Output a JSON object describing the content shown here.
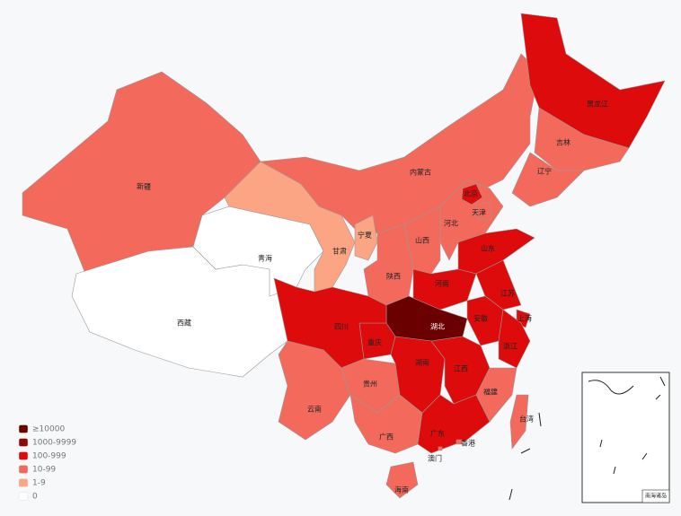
{
  "legend": [
    {
      "label": "≥10000",
      "color": "#6b0000"
    },
    {
      "label": "1000-9999",
      "color": "#8e0a0a"
    },
    {
      "label": "100-999",
      "color": "#dd0b0b"
    },
    {
      "label": "10-99",
      "color": "#f36a5d"
    },
    {
      "label": "1-9",
      "color": "#fba584"
    },
    {
      "label": "0",
      "color": "#ffffff"
    }
  ],
  "provinces": [
    {
      "name": "新疆",
      "level": 3
    },
    {
      "name": "西藏",
      "level": 5
    },
    {
      "name": "青海",
      "level": 5
    },
    {
      "name": "甘肃",
      "level": 4
    },
    {
      "name": "内蒙古",
      "level": 3
    },
    {
      "name": "黑龙江",
      "level": 2
    },
    {
      "name": "吉林",
      "level": 3
    },
    {
      "name": "辽宁",
      "level": 3
    },
    {
      "name": "河北",
      "level": 3
    },
    {
      "name": "北京",
      "level": 2
    },
    {
      "name": "天津",
      "level": 3
    },
    {
      "name": "山西",
      "level": 3
    },
    {
      "name": "宁夏",
      "level": 4
    },
    {
      "name": "陕西",
      "level": 3
    },
    {
      "name": "山东",
      "level": 2
    },
    {
      "name": "河南",
      "level": 2
    },
    {
      "name": "江苏",
      "level": 2
    },
    {
      "name": "安徽",
      "level": 2
    },
    {
      "name": "上海",
      "level": 2
    },
    {
      "name": "浙江",
      "level": 2
    },
    {
      "name": "湖北",
      "level": 0
    },
    {
      "name": "重庆",
      "level": 2
    },
    {
      "name": "四川",
      "level": 2
    },
    {
      "name": "云南",
      "level": 3
    },
    {
      "name": "贵州",
      "level": 3
    },
    {
      "name": "广西",
      "level": 3
    },
    {
      "name": "湖南",
      "level": 2
    },
    {
      "name": "江西",
      "level": 2
    },
    {
      "name": "福建",
      "level": 3
    },
    {
      "name": "广东",
      "level": 2
    },
    {
      "name": "海南",
      "level": 3
    },
    {
      "name": "台湾",
      "level": 3
    },
    {
      "name": "香港",
      "level": 3
    },
    {
      "name": "澳门",
      "level": 3
    }
  ],
  "inset_label": "南海诸岛"
}
